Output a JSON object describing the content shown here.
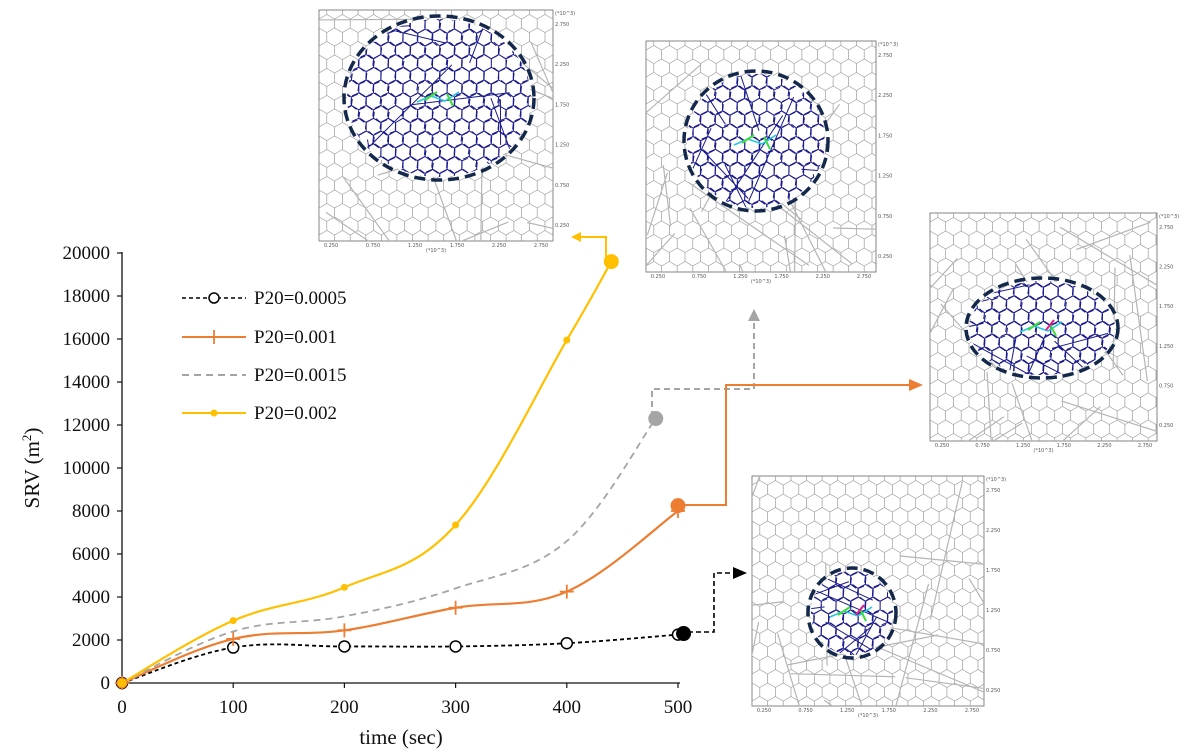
{
  "chart_data": {
    "type": "line",
    "title": "",
    "xlabel": "time (sec)",
    "ylabel_main": "SRV (m",
    "ylabel_sup": "2",
    "ylabel_close": ")",
    "xlim": [
      0,
      500
    ],
    "ylim": [
      0,
      20000
    ],
    "x_ticks": [
      "0",
      "100",
      "200",
      "300",
      "400",
      "500"
    ],
    "y_ticks": [
      "0",
      "2000",
      "4000",
      "6000",
      "8000",
      "10000",
      "12000",
      "14000",
      "16000",
      "18000",
      "20000"
    ],
    "grid": false,
    "legend_position": "top-left",
    "series": [
      {
        "name": "P20=0.0005",
        "color": "#000000",
        "style": "dashed",
        "marker": "open-circle",
        "x": [
          0,
          100,
          200,
          300,
          400,
          500
        ],
        "values": [
          0,
          1650,
          1700,
          1700,
          1850,
          2250
        ],
        "end_point": {
          "x": 505,
          "y": 2300
        }
      },
      {
        "name": "P20=0.001",
        "color": "#ED7D31",
        "style": "solid",
        "marker": "plus",
        "x": [
          0,
          100,
          200,
          300,
          400,
          500
        ],
        "values": [
          0,
          2050,
          2450,
          3500,
          4250,
          8000
        ],
        "end_point": {
          "x": 500,
          "y": 8250
        }
      },
      {
        "name": "P20=0.0015",
        "color": "#A5A5A5",
        "style": "dashed",
        "marker": "none",
        "x": [
          0,
          100,
          200,
          300,
          400,
          480
        ],
        "values": [
          0,
          2400,
          3100,
          4400,
          6600,
          12300
        ],
        "end_point": {
          "x": 480,
          "y": 12300
        }
      },
      {
        "name": "P20=0.002",
        "color": "#FFC000",
        "style": "solid",
        "marker": "dot",
        "x": [
          0,
          100,
          200,
          300,
          400,
          440
        ],
        "values": [
          0,
          2900,
          4450,
          7350,
          15950,
          19600
        ],
        "end_point": {
          "x": 440,
          "y": 19600
        }
      }
    ],
    "insets": [
      {
        "series": "P20=0.002",
        "arrow_color": "#FFC000",
        "arrow_style": "solid",
        "x_ticks": [
          "0.250",
          "0.750",
          "1.250",
          "1.750",
          "2.250",
          "2.750"
        ],
        "y_ticks": [
          "2.750",
          "2.250",
          "1.750",
          "1.250",
          "0.750",
          "0.250"
        ],
        "axis_unit": "(*10^3)"
      },
      {
        "series": "P20=0.0015",
        "arrow_color": "#A5A5A5",
        "arrow_style": "dashed",
        "x_ticks": [
          "0.250",
          "0.750",
          "1.250",
          "1.750",
          "2.250",
          "2.750"
        ],
        "y_ticks": [
          "2.750",
          "2.250",
          "1.750",
          "1.250",
          "0.750",
          "0.250"
        ],
        "axis_unit": "(*10^3)"
      },
      {
        "series": "P20=0.001",
        "arrow_color": "#ED7D31",
        "arrow_style": "solid",
        "x_ticks": [
          "0.250",
          "0.750",
          "1.250",
          "1.750",
          "2.250",
          "2.750"
        ],
        "y_ticks": [
          "2.750",
          "2.250",
          "1.750",
          "1.250",
          "0.750",
          "0.250"
        ],
        "axis_unit": "(*10^3)"
      },
      {
        "series": "P20=0.0005",
        "arrow_color": "#000000",
        "arrow_style": "dashed",
        "x_ticks": [
          "0.250",
          "0.750",
          "1.250",
          "1.750",
          "2.250",
          "2.750"
        ],
        "y_ticks": [
          "2.750",
          "2.250",
          "1.750",
          "1.250",
          "0.750",
          "0.250"
        ],
        "axis_unit": "(*10^3)"
      }
    ],
    "colors": {
      "fracture_network": "#9a9a9a",
      "stimulated_network": "#1a1a8c",
      "srv_ellipse": "#14284b"
    }
  }
}
